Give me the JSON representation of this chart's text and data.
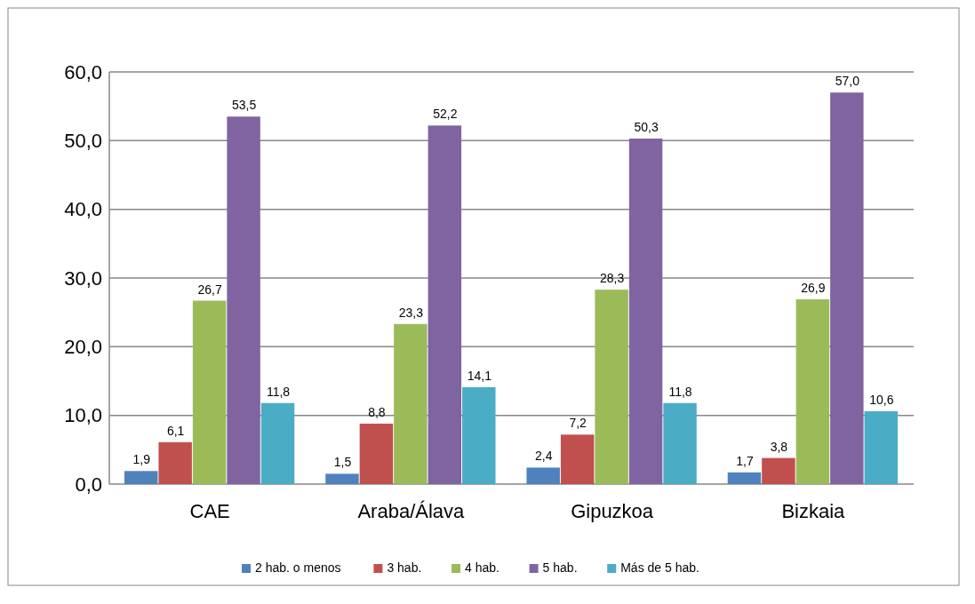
{
  "chart_data": {
    "type": "bar",
    "categories": [
      "CAE",
      "Araba/Álava",
      "Gipuzkoa",
      "Bizkaia"
    ],
    "series": [
      {
        "name": "2 hab. o menos",
        "color": "#4f81bd",
        "values": [
          1.9,
          1.5,
          2.4,
          1.7
        ],
        "value_labels": [
          "1,9",
          "1,5",
          "2,4",
          "1,7"
        ]
      },
      {
        "name": "3 hab.",
        "color": "#c0504d",
        "values": [
          6.1,
          8.8,
          7.2,
          3.8
        ],
        "value_labels": [
          "6,1",
          "8,8",
          "7,2",
          "3,8"
        ]
      },
      {
        "name": "4 hab.",
        "color": "#9bbb59",
        "values": [
          26.7,
          23.3,
          28.3,
          26.9
        ],
        "value_labels": [
          "26,7",
          "23,3",
          "28,3",
          "26,9"
        ]
      },
      {
        "name": "5 hab.",
        "color": "#8064a2",
        "values": [
          53.5,
          52.2,
          50.3,
          57.0
        ],
        "value_labels": [
          "53,5",
          "52,2",
          "50,3",
          "57,0"
        ]
      },
      {
        "name": "Más de 5 hab.",
        "color": "#4bacc6",
        "values": [
          11.8,
          14.1,
          11.8,
          10.6
        ],
        "value_labels": [
          "11,8",
          "14,1",
          "11,8",
          "10,6"
        ]
      }
    ],
    "ylim": [
      0,
      60
    ],
    "yticks": [
      {
        "value": 0,
        "label": "0,0"
      },
      {
        "value": 10,
        "label": "10,0"
      },
      {
        "value": 20,
        "label": "20,0"
      },
      {
        "value": 30,
        "label": "30,0"
      },
      {
        "value": 40,
        "label": "40,0"
      },
      {
        "value": 50,
        "label": "50,0"
      },
      {
        "value": 60,
        "label": "60,0"
      }
    ],
    "grid": "y",
    "legend": "bottom"
  }
}
